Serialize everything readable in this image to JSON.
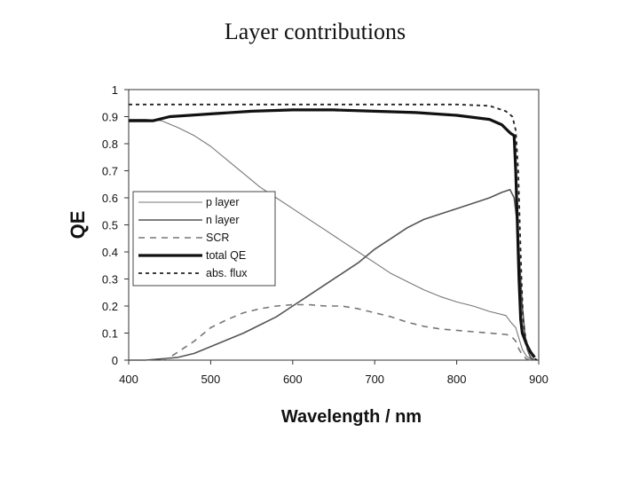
{
  "chart_data": {
    "type": "line",
    "title": "Layer contributions",
    "xlabel": "Wavelength / nm",
    "ylabel": "QE",
    "xlim": [
      400,
      900
    ],
    "ylim": [
      0,
      1
    ],
    "x_ticks": [
      400,
      500,
      600,
      700,
      800,
      900
    ],
    "x_tick_labels": [
      "400",
      "500",
      "600",
      "700",
      "800",
      "900"
    ],
    "y_ticks": [
      0,
      0.1,
      0.2,
      0.3,
      0.4,
      0.5,
      0.6,
      0.7,
      0.8,
      0.9,
      1
    ],
    "y_tick_labels": [
      "0",
      "0.1",
      "0.2",
      "0.3",
      "0.4",
      "0.5",
      "0.6",
      "0.7",
      "0.8",
      "0.9",
      "1"
    ],
    "grid": false,
    "legend_position": "left",
    "series": [
      {
        "name": "p layer",
        "style": "thin-solid",
        "color": "#777777",
        "points": [
          [
            400,
            0.89
          ],
          [
            420,
            0.89
          ],
          [
            440,
            0.885
          ],
          [
            460,
            0.86
          ],
          [
            480,
            0.83
          ],
          [
            500,
            0.79
          ],
          [
            520,
            0.74
          ],
          [
            540,
            0.69
          ],
          [
            560,
            0.64
          ],
          [
            580,
            0.6
          ],
          [
            600,
            0.56
          ],
          [
            620,
            0.52
          ],
          [
            640,
            0.48
          ],
          [
            660,
            0.44
          ],
          [
            680,
            0.4
          ],
          [
            700,
            0.36
          ],
          [
            720,
            0.32
          ],
          [
            740,
            0.29
          ],
          [
            760,
            0.26
          ],
          [
            780,
            0.235
          ],
          [
            800,
            0.215
          ],
          [
            820,
            0.2
          ],
          [
            840,
            0.18
          ],
          [
            860,
            0.165
          ],
          [
            866,
            0.14
          ],
          [
            872,
            0.12
          ],
          [
            876,
            0.08
          ],
          [
            880,
            0.04
          ],
          [
            885,
            0.015
          ],
          [
            890,
            0.005
          ],
          [
            895,
            0
          ]
        ]
      },
      {
        "name": "n layer",
        "style": "medium-solid",
        "color": "#555555",
        "points": [
          [
            400,
            0
          ],
          [
            420,
            0
          ],
          [
            440,
            0.005
          ],
          [
            460,
            0.01
          ],
          [
            480,
            0.025
          ],
          [
            500,
            0.05
          ],
          [
            520,
            0.075
          ],
          [
            540,
            0.1
          ],
          [
            560,
            0.13
          ],
          [
            580,
            0.16
          ],
          [
            600,
            0.2
          ],
          [
            620,
            0.24
          ],
          [
            640,
            0.28
          ],
          [
            660,
            0.32
          ],
          [
            680,
            0.36
          ],
          [
            700,
            0.41
          ],
          [
            720,
            0.45
          ],
          [
            740,
            0.49
          ],
          [
            760,
            0.52
          ],
          [
            780,
            0.54
          ],
          [
            800,
            0.56
          ],
          [
            820,
            0.58
          ],
          [
            840,
            0.6
          ],
          [
            855,
            0.62
          ],
          [
            865,
            0.63
          ],
          [
            870,
            0.6
          ],
          [
            874,
            0.5
          ],
          [
            877,
            0.35
          ],
          [
            880,
            0.2
          ],
          [
            883,
            0.1
          ],
          [
            886,
            0.04
          ],
          [
            890,
            0.01
          ],
          [
            895,
            0
          ]
        ]
      },
      {
        "name": "SCR",
        "style": "dashed",
        "color": "#777777",
        "points": [
          [
            440,
            0
          ],
          [
            450,
            0.01
          ],
          [
            460,
            0.03
          ],
          [
            480,
            0.07
          ],
          [
            500,
            0.12
          ],
          [
            520,
            0.15
          ],
          [
            540,
            0.175
          ],
          [
            560,
            0.19
          ],
          [
            580,
            0.2
          ],
          [
            600,
            0.205
          ],
          [
            620,
            0.205
          ],
          [
            640,
            0.2
          ],
          [
            660,
            0.2
          ],
          [
            680,
            0.19
          ],
          [
            700,
            0.175
          ],
          [
            720,
            0.16
          ],
          [
            740,
            0.14
          ],
          [
            760,
            0.125
          ],
          [
            780,
            0.115
          ],
          [
            800,
            0.11
          ],
          [
            820,
            0.105
          ],
          [
            840,
            0.1
          ],
          [
            860,
            0.095
          ],
          [
            866,
            0.09
          ],
          [
            872,
            0.07
          ],
          [
            876,
            0.04
          ],
          [
            880,
            0.02
          ],
          [
            885,
            0.005
          ],
          [
            890,
            0
          ]
        ]
      },
      {
        "name": "total QE",
        "style": "thick-solid",
        "color": "#111111",
        "points": [
          [
            400,
            0.885
          ],
          [
            430,
            0.885
          ],
          [
            450,
            0.9
          ],
          [
            500,
            0.91
          ],
          [
            550,
            0.92
          ],
          [
            600,
            0.925
          ],
          [
            650,
            0.925
          ],
          [
            700,
            0.92
          ],
          [
            750,
            0.915
          ],
          [
            800,
            0.905
          ],
          [
            840,
            0.89
          ],
          [
            855,
            0.87
          ],
          [
            865,
            0.84
          ],
          [
            870,
            0.83
          ],
          [
            872,
            0.7
          ],
          [
            874,
            0.5
          ],
          [
            876,
            0.3
          ],
          [
            878,
            0.15
          ],
          [
            880,
            0.1
          ],
          [
            885,
            0.06
          ],
          [
            890,
            0.03
          ],
          [
            895,
            0.01
          ]
        ]
      },
      {
        "name": "abs. flux",
        "style": "short-dashed",
        "color": "#222222",
        "points": [
          [
            400,
            0.945
          ],
          [
            450,
            0.945
          ],
          [
            500,
            0.945
          ],
          [
            600,
            0.945
          ],
          [
            700,
            0.945
          ],
          [
            800,
            0.945
          ],
          [
            840,
            0.94
          ],
          [
            860,
            0.92
          ],
          [
            868,
            0.9
          ],
          [
            872,
            0.85
          ],
          [
            875,
            0.7
          ],
          [
            877,
            0.5
          ],
          [
            879,
            0.3
          ],
          [
            881,
            0.15
          ],
          [
            884,
            0.08
          ],
          [
            888,
            0.04
          ],
          [
            893,
            0.01
          ],
          [
            898,
            0
          ]
        ]
      }
    ]
  }
}
